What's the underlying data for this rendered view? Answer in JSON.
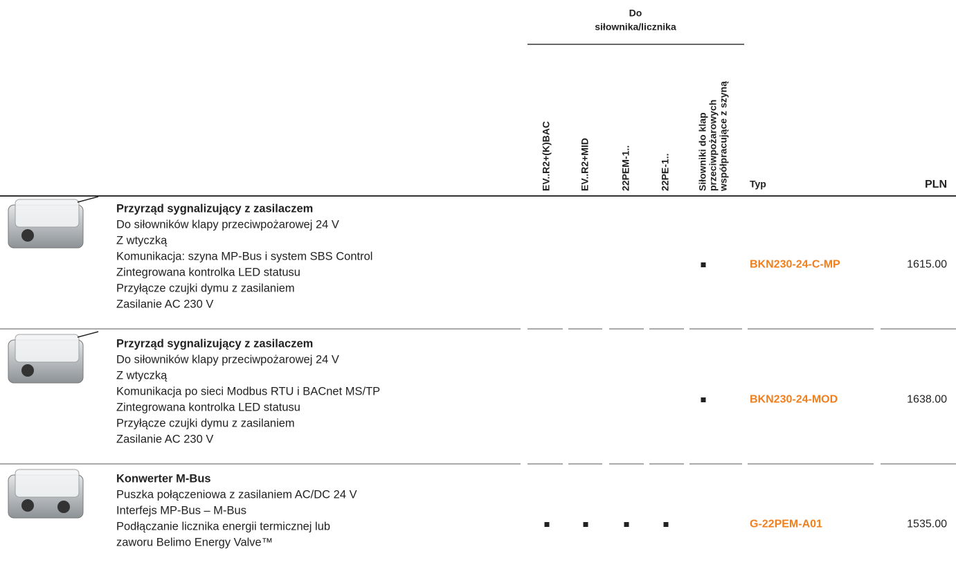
{
  "header": {
    "group": [
      "Do",
      "siłownika/licznika"
    ],
    "columns": [
      [
        "EV..R2+(K)BAC"
      ],
      [
        "EV..R2+MID"
      ],
      [
        "22PEM-1.."
      ],
      [
        "22PE-1.."
      ],
      [
        "Siłowniki do klap",
        "przeciwpożarowych",
        "współpracujące z szyną"
      ]
    ],
    "type": "Typ",
    "price": "PLN"
  },
  "rows": [
    {
      "title": "Przyrząd sygnalizujący z zasilaczem",
      "lines": [
        "Do siłowników klapy przeciwpożarowej 24 V",
        "Z wtyczką",
        "Komunikacja: szyna MP-Bus i system SBS Control",
        "Zintegrowana kontrolka LED statusu",
        "Przyłącze czujki dymu z zasilaniem",
        "Zasilanie AC 230 V"
      ],
      "marks": [
        false,
        false,
        false,
        false,
        true
      ],
      "type": "BKN230-24-C-MP",
      "price": "1615.00"
    },
    {
      "title": "Przyrząd sygnalizujący z zasilaczem",
      "lines": [
        "Do siłowników klapy przeciwpożarowej 24 V",
        "Z wtyczką",
        "Komunikacja po sieci Modbus RTU i BACnet MS/TP",
        "Zintegrowana kontrolka LED statusu",
        "Przyłącze czujki dymu z zasilaniem",
        "Zasilanie AC 230 V"
      ],
      "marks": [
        false,
        false,
        false,
        false,
        true
      ],
      "type": "BKN230-24-MOD",
      "price": "1638.00"
    },
    {
      "title": "Konwerter M-Bus",
      "lines": [
        "Puszka połączeniowa z zasilaniem AC/DC 24 V",
        "Interfejs MP-Bus – M-Bus",
        "Podłączanie licznika energii termicznej lub",
        "zaworu Belimo Energy Valve™"
      ],
      "marks": [
        true,
        true,
        true,
        true,
        false
      ],
      "type": "G-22PEM-A01",
      "price": "1535.00"
    }
  ]
}
